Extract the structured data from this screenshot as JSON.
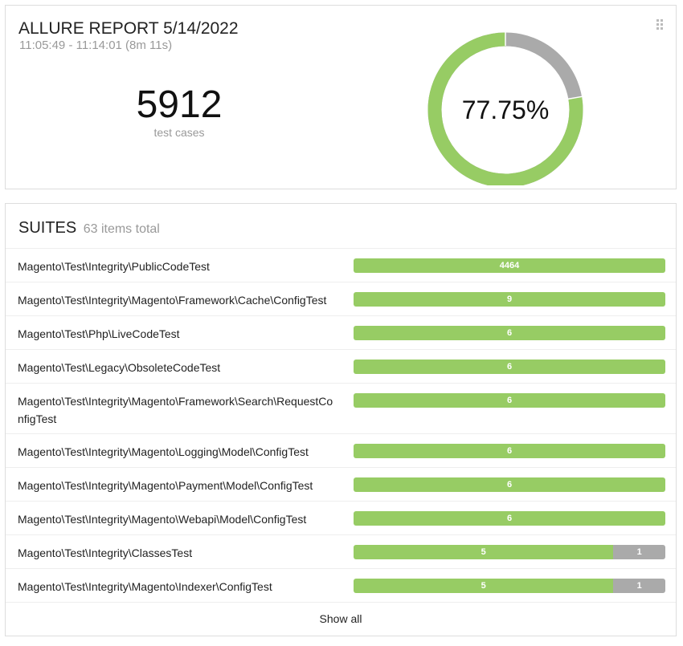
{
  "summary": {
    "title": "ALLURE REPORT 5/14/2022",
    "time_range": "11:05:49 - 11:14:01 (8m 11s)",
    "test_cases_count": "5912",
    "test_cases_label": "test cases",
    "success_rate_label": "77.75%",
    "success_rate": 77.75,
    "colors": {
      "passed": "#97cc64",
      "other": "#aaaaaa"
    },
    "drag_handle_icon": "grip-dots-icon"
  },
  "suites": {
    "title": "SUITES",
    "count_label": "63 items total",
    "show_all_label": "Show all",
    "items": [
      {
        "name": "Magento\\Test\\Integrity\\PublicCodeTest",
        "passed": 4464,
        "skipped": 0,
        "passed_label": "4464",
        "skipped_label": "",
        "tall": false
      },
      {
        "name": "Magento\\Test\\Integrity\\Magento\\Framework\\Cache\\ConfigTest",
        "passed": 9,
        "skipped": 0,
        "passed_label": "9",
        "skipped_label": "",
        "tall": false
      },
      {
        "name": "Magento\\Test\\Php\\LiveCodeTest",
        "passed": 6,
        "skipped": 0,
        "passed_label": "6",
        "skipped_label": "",
        "tall": false
      },
      {
        "name": "Magento\\Test\\Legacy\\ObsoleteCodeTest",
        "passed": 6,
        "skipped": 0,
        "passed_label": "6",
        "skipped_label": "",
        "tall": false
      },
      {
        "name": "Magento\\Test\\Integrity\\Magento\\Framework\\Search\\RequestConfigTest",
        "passed": 6,
        "skipped": 0,
        "passed_label": "6",
        "skipped_label": "",
        "tall": true
      },
      {
        "name": "Magento\\Test\\Integrity\\Magento\\Logging\\Model\\ConfigTest",
        "passed": 6,
        "skipped": 0,
        "passed_label": "6",
        "skipped_label": "",
        "tall": false
      },
      {
        "name": "Magento\\Test\\Integrity\\Magento\\Payment\\Model\\ConfigTest",
        "passed": 6,
        "skipped": 0,
        "passed_label": "6",
        "skipped_label": "",
        "tall": false
      },
      {
        "name": "Magento\\Test\\Integrity\\Magento\\Webapi\\Model\\ConfigTest",
        "passed": 6,
        "skipped": 0,
        "passed_label": "6",
        "skipped_label": "",
        "tall": false
      },
      {
        "name": "Magento\\Test\\Integrity\\ClassesTest",
        "passed": 5,
        "skipped": 1,
        "passed_label": "5",
        "skipped_label": "1",
        "tall": false
      },
      {
        "name": "Magento\\Test\\Integrity\\Magento\\Indexer\\ConfigTest",
        "passed": 5,
        "skipped": 1,
        "passed_label": "5",
        "skipped_label": "1",
        "tall": false
      }
    ]
  }
}
